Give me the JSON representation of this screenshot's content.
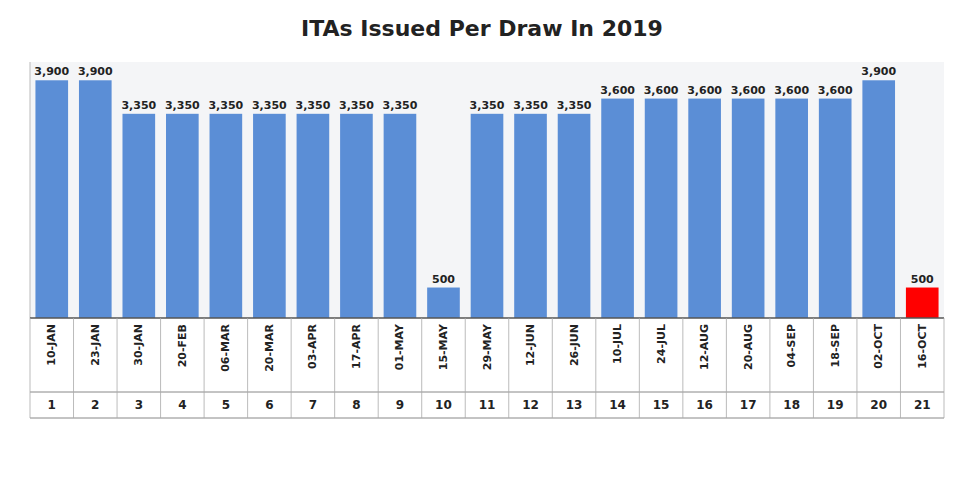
{
  "chart_data": {
    "type": "bar",
    "title": "ITAs Issued Per Draw In 2019",
    "categories": [
      "10-JAN",
      "23-JAN",
      "30-JAN",
      "20-FEB",
      "06-MAR",
      "20-MAR",
      "03-APR",
      "17-APR",
      "01-MAY",
      "15-MAY",
      "29-MAY",
      "12-JUN",
      "26-JUN",
      "10-JUL",
      "24-JUL",
      "12-AUG",
      "20-AUG",
      "04-SEP",
      "18-SEP",
      "02-OCT",
      "16-OCT"
    ],
    "numbers": [
      1,
      2,
      3,
      4,
      5,
      6,
      7,
      8,
      9,
      10,
      11,
      12,
      13,
      14,
      15,
      16,
      17,
      18,
      19,
      20,
      21
    ],
    "values": [
      3900,
      3900,
      3350,
      3350,
      3350,
      3350,
      3350,
      3350,
      3350,
      500,
      3350,
      3350,
      3350,
      3600,
      3600,
      3600,
      3600,
      3600,
      3600,
      3900,
      500
    ],
    "value_labels": [
      "3,900",
      "3,900",
      "3,350",
      "3,350",
      "3,350",
      "3,350",
      "3,350",
      "3,350",
      "3,350",
      "500",
      "3,350",
      "3,350",
      "3,350",
      "3,600",
      "3,600",
      "3,600",
      "3,600",
      "3,600",
      "3,600",
      "3,900",
      "500"
    ],
    "colors": [
      "#5B8ED6",
      "#5B8ED6",
      "#5B8ED6",
      "#5B8ED6",
      "#5B8ED6",
      "#5B8ED6",
      "#5B8ED6",
      "#5B8ED6",
      "#5B8ED6",
      "#5B8ED6",
      "#5B8ED6",
      "#5B8ED6",
      "#5B8ED6",
      "#5B8ED6",
      "#5B8ED6",
      "#5B8ED6",
      "#5B8ED6",
      "#5B8ED6",
      "#5B8ED6",
      "#5B8ED6",
      "#FF0000"
    ],
    "ylim": [
      0,
      4200
    ],
    "data_labels": true,
    "grid": false,
    "tick_labels": "x"
  }
}
